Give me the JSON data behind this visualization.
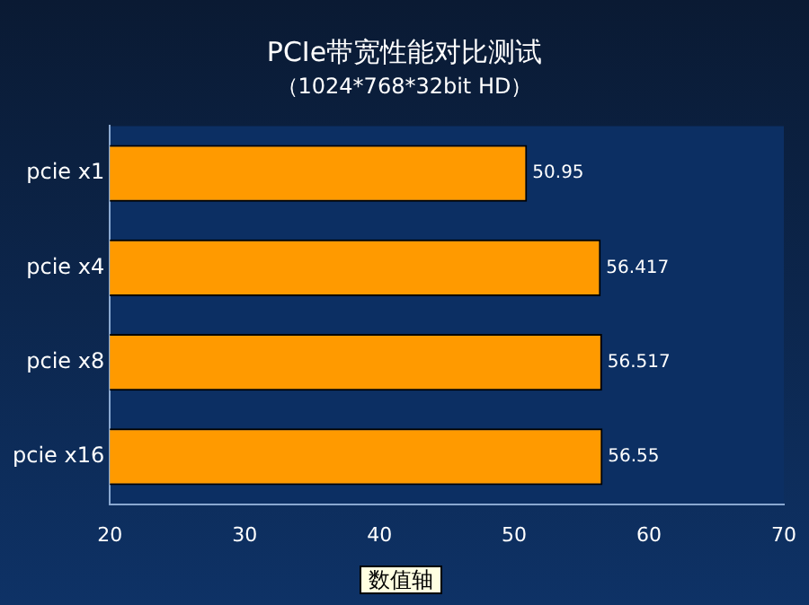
{
  "chart_data": {
    "type": "bar",
    "orientation": "horizontal",
    "title": "PCIe带宽性能对比测试",
    "subtitle": "（1024*768*32bit HD）",
    "categories": [
      "pcie x1",
      "pcie x4",
      "pcie x8",
      "pcie x16"
    ],
    "values": [
      50.95,
      56.417,
      56.517,
      56.55
    ],
    "color": "#ff9a00",
    "xlim": [
      20,
      70
    ],
    "xticks": [
      20,
      30,
      40,
      50,
      60,
      70
    ],
    "grid": false,
    "legend": false,
    "data_labels": true,
    "annotations": [
      "数值轴"
    ]
  }
}
